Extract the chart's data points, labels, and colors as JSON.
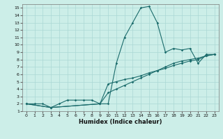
{
  "xlabel": "Humidex (Indice chaleur)",
  "bg_color": "#cceee8",
  "grid_color": "#aad8d4",
  "line_color": "#1a6b6b",
  "xlim": [
    -0.5,
    23.5
  ],
  "ylim": [
    1,
    15.5
  ],
  "xticks": [
    0,
    1,
    2,
    3,
    4,
    5,
    6,
    7,
    8,
    9,
    10,
    11,
    12,
    13,
    14,
    15,
    16,
    17,
    18,
    19,
    20,
    21,
    22,
    23
  ],
  "yticks": [
    1,
    2,
    3,
    4,
    5,
    6,
    7,
    8,
    9,
    10,
    11,
    12,
    13,
    14,
    15
  ],
  "line1_x": [
    0,
    1,
    2,
    3,
    4,
    5,
    6,
    7,
    8,
    9,
    10,
    11,
    12,
    13,
    14,
    15,
    16,
    17,
    18,
    19,
    20,
    21,
    22,
    23
  ],
  "line1_y": [
    2,
    2,
    2,
    1.5,
    2,
    2.5,
    2.5,
    2.5,
    2.5,
    2,
    2,
    7.5,
    11,
    13,
    15,
    15.2,
    13,
    9,
    9.5,
    9.3,
    9.5,
    7.5,
    8.7,
    8.7
  ],
  "line2_x": [
    0,
    3,
    9,
    10,
    11,
    12,
    13,
    14,
    15,
    16,
    17,
    18,
    19,
    20,
    21,
    22,
    23
  ],
  "line2_y": [
    2,
    1.5,
    2,
    4.7,
    5.0,
    5.3,
    5.5,
    5.8,
    6.2,
    6.5,
    6.8,
    7.2,
    7.5,
    7.8,
    8.0,
    8.5,
    8.7
  ],
  "line3_x": [
    0,
    3,
    9,
    10,
    11,
    12,
    13,
    14,
    15,
    16,
    17,
    18,
    19,
    20,
    21,
    22,
    23
  ],
  "line3_y": [
    2,
    1.5,
    2,
    3.5,
    4.0,
    4.5,
    5.0,
    5.5,
    6.0,
    6.5,
    7.0,
    7.5,
    7.8,
    8.0,
    8.2,
    8.5,
    8.7
  ]
}
